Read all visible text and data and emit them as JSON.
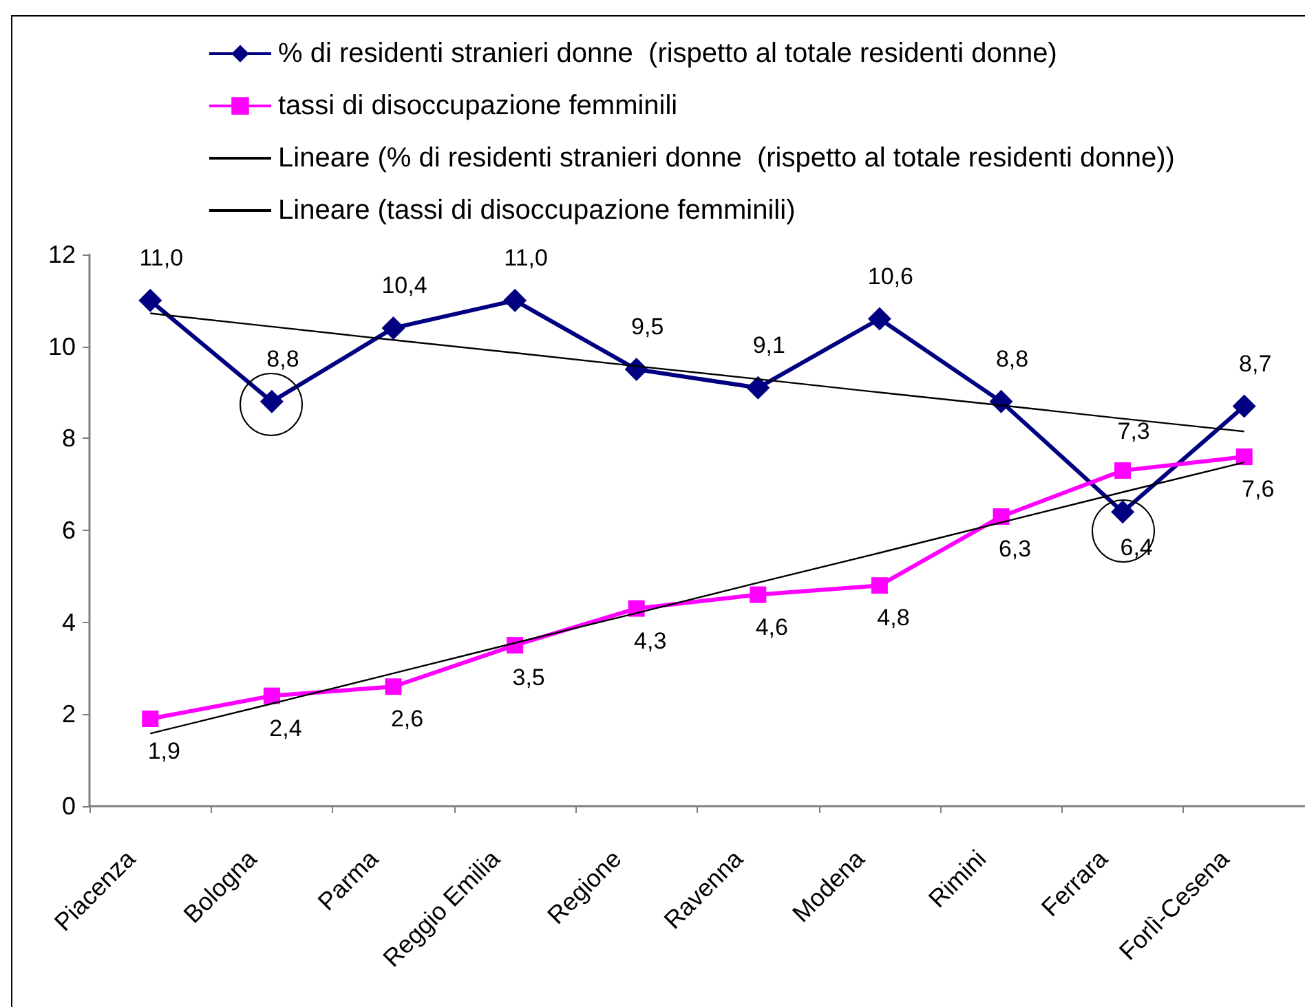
{
  "chart_data": {
    "type": "line",
    "categories": [
      "Piacenza",
      "Bologna",
      "Parma",
      "Reggio Emilia",
      "Regione",
      "Ravenna",
      "Modena",
      "Rimini",
      "Ferrara",
      "Forlì-Cesena"
    ],
    "series": [
      {
        "name": "% di residenti stranieri donne  (rispetto al totale residenti donne)",
        "color": "#000080",
        "marker": "diamond",
        "values": [
          11.0,
          8.8,
          10.4,
          11.0,
          9.5,
          9.1,
          10.6,
          8.8,
          6.4,
          8.7
        ],
        "value_labels": [
          "11,0",
          "8,8",
          "10,4",
          "11,0",
          "9,5",
          "9,1",
          "10,6",
          "8,8",
          "6,4",
          "8,7"
        ]
      },
      {
        "name": "tassi di disoccupazione femminili",
        "color": "#ff00ff",
        "marker": "square",
        "values": [
          1.9,
          2.4,
          2.6,
          3.5,
          4.3,
          4.6,
          4.8,
          6.3,
          7.3,
          7.6
        ],
        "value_labels": [
          "1,9",
          "2,4",
          "2,6",
          "3,5",
          "4,3",
          "4,6",
          "4,8",
          "6,3",
          "7,3",
          "7,6"
        ]
      },
      {
        "type": "line",
        "name": "Lineare (% di residenti stranieri donne  (rispetto al totale residenti donne))",
        "color": "#000000",
        "marker": "none",
        "values": [
          10.72,
          10.43,
          10.14,
          9.86,
          9.57,
          9.29,
          9.0,
          8.72,
          8.43,
          8.15
        ]
      },
      {
        "type": "line",
        "name": "Lineare (tassi di disoccupazione femminili)",
        "color": "#000000",
        "marker": "none",
        "values": [
          1.58,
          2.23,
          2.89,
          3.55,
          4.2,
          4.86,
          5.51,
          6.17,
          6.83,
          7.48
        ]
      }
    ],
    "ylim": [
      0,
      12
    ],
    "yticks": [
      0,
      2,
      4,
      6,
      8,
      10,
      12
    ],
    "legend": "top"
  }
}
